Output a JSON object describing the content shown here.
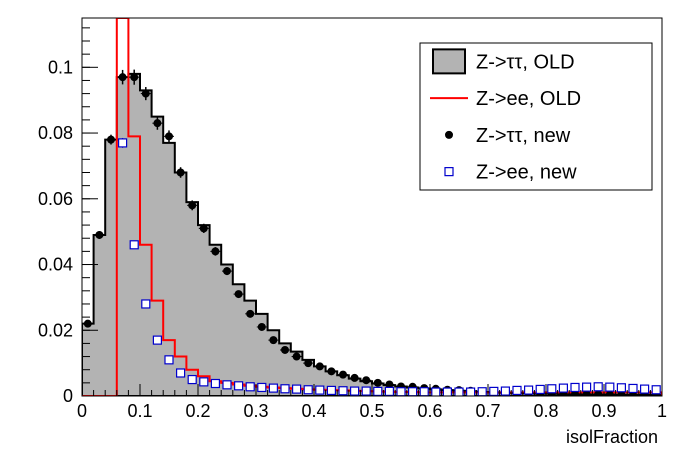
{
  "chart_data": {
    "type": "histogram",
    "title": "",
    "xlabel": "isolFraction",
    "ylabel": "",
    "xlim": [
      0,
      1
    ],
    "ylim": [
      0,
      0.115
    ],
    "bin_width": 0.02,
    "x_ticks": [
      0,
      0.1,
      0.2,
      0.3,
      0.4,
      0.5,
      0.6,
      0.7,
      0.8,
      0.9,
      1
    ],
    "x_tick_labels": [
      "0",
      "0.1",
      "0.2",
      "0.3",
      "0.4",
      "0.5",
      "0.6",
      "0.7",
      "0.8",
      "0.9",
      "1"
    ],
    "y_ticks": [
      0,
      0.02,
      0.04,
      0.06,
      0.08,
      0.1
    ],
    "y_tick_labels": [
      "0",
      "0.02",
      "0.04",
      "0.06",
      "0.08",
      "0.1"
    ],
    "legend": {
      "placement": "top-right",
      "entries": [
        {
          "label": "Z->ττ, OLD",
          "style": "filled-histogram"
        },
        {
          "label": "Z->ee, OLD",
          "style": "red-line"
        },
        {
          "label": "Z->ττ, new",
          "style": "black-marker"
        },
        {
          "label": "Z->ee, new",
          "style": "blue-open-square"
        }
      ]
    },
    "series": [
      {
        "name": "Z->ττ, OLD",
        "kind": "filled-step",
        "color": "#b3b3b3",
        "stroke": "#000000",
        "values": [
          0.022,
          0.049,
          0.078,
          0.097,
          0.098,
          0.093,
          0.085,
          0.077,
          0.068,
          0.059,
          0.052,
          0.046,
          0.04,
          0.034,
          0.029,
          0.025,
          0.02,
          0.016,
          0.0135,
          0.011,
          0.009,
          0.0075,
          0.0063,
          0.0053,
          0.0045,
          0.0038,
          0.0033,
          0.0029,
          0.0026,
          0.0023,
          0.002,
          0.0018,
          0.0016,
          0.0014,
          0.0012,
          0.0011,
          0.001,
          0.0009,
          0.0008,
          0.0007,
          0.0007,
          0.0006,
          0.0006,
          0.0005,
          0.0005,
          0.0005,
          0.0004,
          0.0004,
          0.0004,
          0.0003
        ]
      },
      {
        "name": "Z->ee, OLD",
        "kind": "step-line",
        "color": "#ff0000",
        "values": [
          0,
          0,
          0,
          0.115,
          0.079,
          0.046,
          0.029,
          0.017,
          0.012,
          0.008,
          0.006,
          0.0045,
          0.004,
          0.0035,
          0.0031,
          0.0028,
          0.0026,
          0.0024,
          0.0022,
          0.002,
          0.0019,
          0.0018,
          0.0017,
          0.0016,
          0.0015,
          0.0014,
          0.0013,
          0.0012,
          0.0012,
          0.0011,
          0.0011,
          0.0011,
          0.0011,
          0.0011,
          0.0011,
          0.0011,
          0.0011,
          0.0011,
          0.0011,
          0.0011,
          0.0011,
          0.0011,
          0.0011,
          0.0011,
          0.0011,
          0.0011,
          0.0011,
          0.0011,
          0.0011,
          0.0011
        ]
      },
      {
        "name": "Z->ττ, new",
        "kind": "markers",
        "color": "#000000",
        "values": [
          0.022,
          0.049,
          0.078,
          0.097,
          0.097,
          0.092,
          0.083,
          0.079,
          0.068,
          0.058,
          0.051,
          0.044,
          0.038,
          0.031,
          0.025,
          0.021,
          0.017,
          0.014,
          0.012,
          0.01,
          0.009,
          0.0075,
          0.0065,
          0.0055,
          0.0048,
          0.004,
          0.0035,
          0.0029,
          0.0028,
          0.0024,
          0.0022,
          0.0019,
          0.0018,
          0.0016,
          0.0013,
          0.0012,
          0.0011,
          0.001,
          0.0009,
          0.0008,
          0.0007,
          0.0006,
          0.0006,
          0.0005,
          0.0005,
          0.0004,
          0.0004,
          0.0003,
          0.0003,
          0.0002
        ],
        "errors": [
          0.001,
          0.0012,
          0.0015,
          0.0022,
          0.0023,
          0.002,
          0.002,
          0.0018,
          0.0016,
          0.0015,
          0.0014,
          0.0013,
          0.0012,
          0.0011,
          0.001,
          0.0009,
          0.0008,
          0.0007,
          0.0006,
          0.0006,
          0.0005,
          0.0005,
          0.0004,
          0.0004,
          0.0004,
          0.0004,
          0.0003,
          0.0003,
          0.0003,
          0.0003,
          0.0003,
          0.0003,
          0.0003,
          0.0003,
          0.0003,
          0.0003,
          0.0003,
          0.0003,
          0.0003,
          0.0003,
          0.0003,
          0.0003,
          0.0003,
          0.0003,
          0.0003,
          0.0003,
          0.0003,
          0.0003,
          0.0003,
          0.0003
        ]
      },
      {
        "name": "Z->ee, new",
        "kind": "markers",
        "color": "#0000cc",
        "values": [
          null,
          null,
          null,
          0.077,
          0.046,
          0.028,
          0.017,
          0.011,
          0.007,
          0.005,
          0.0043,
          0.0038,
          0.0034,
          0.0031,
          0.0028,
          0.0026,
          0.0024,
          0.0022,
          0.0021,
          0.0019,
          0.0018,
          0.0017,
          0.0016,
          0.0015,
          0.0015,
          0.0014,
          0.0014,
          0.0013,
          0.0013,
          0.0013,
          0.0012,
          0.0012,
          0.0012,
          0.0012,
          0.0013,
          0.0014,
          0.0015,
          0.0017,
          0.0018,
          0.002,
          0.0022,
          0.0024,
          0.0026,
          0.0027,
          0.0028,
          0.0027,
          0.0025,
          0.0023,
          0.0021,
          0.0019
        ],
        "errors": [
          0,
          0,
          0,
          0.0015,
          0.0012,
          0.001,
          0.0008,
          0.0007,
          0.0006,
          0.0005,
          0.0005,
          0.0005,
          0.0004,
          0.0004,
          0.0004,
          0.0004,
          0.0004,
          0.0004,
          0.0004,
          0.0004,
          0.0004,
          0.0004,
          0.0004,
          0.0004,
          0.0004,
          0.0004,
          0.0004,
          0.0004,
          0.0004,
          0.0004,
          0.0004,
          0.0004,
          0.0004,
          0.0004,
          0.0004,
          0.0004,
          0.0004,
          0.0004,
          0.0004,
          0.0004,
          0.0004,
          0.0004,
          0.0004,
          0.0004,
          0.0004,
          0.0004,
          0.0004,
          0.0004,
          0.0004,
          0.0004
        ]
      }
    ]
  }
}
